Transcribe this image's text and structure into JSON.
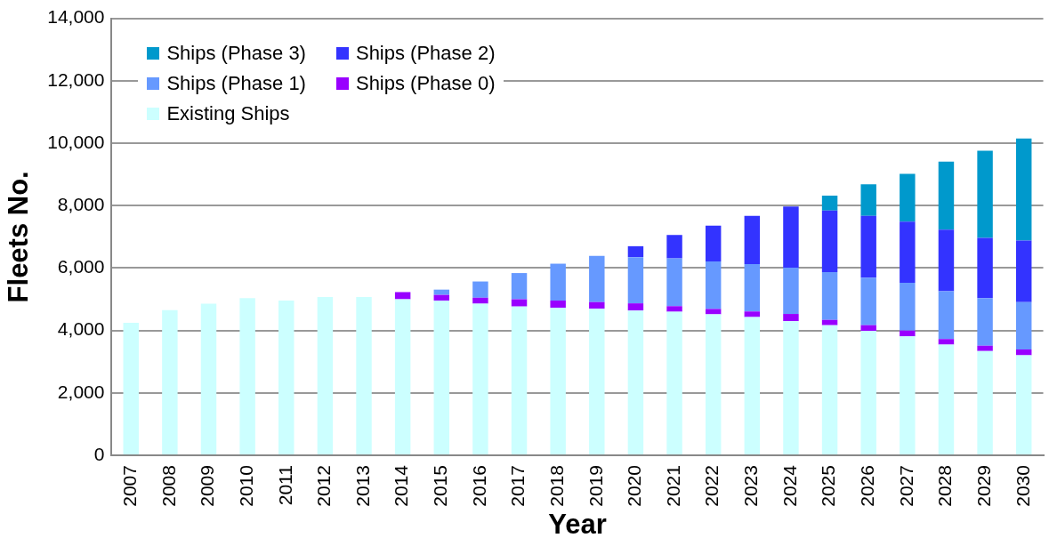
{
  "chart_data": {
    "type": "bar",
    "stacked": true,
    "xlabel": "Year",
    "ylabel": "Fleets No.",
    "categories": [
      "2007",
      "2008",
      "2009",
      "2010",
      "2011",
      "2012",
      "2013",
      "2014",
      "2015",
      "2016",
      "2017",
      "2018",
      "2019",
      "2020",
      "2021",
      "2022",
      "2023",
      "2024",
      "2025",
      "2026",
      "2027",
      "2028",
      "2029",
      "2030"
    ],
    "series": [
      {
        "name": "Existing Ships",
        "color": "#ccffff",
        "values": [
          4250,
          4650,
          4860,
          5040,
          4960,
          5070,
          5070,
          5000,
          4960,
          4860,
          4770,
          4730,
          4700,
          4640,
          4600,
          4520,
          4430,
          4300,
          4170,
          3990,
          3810,
          3550,
          3340,
          3210
        ]
      },
      {
        "name": "Ships (Phase 0)",
        "color": "#9900ff",
        "values": [
          null,
          null,
          null,
          null,
          null,
          null,
          null,
          230,
          180,
          190,
          230,
          230,
          210,
          230,
          180,
          170,
          180,
          230,
          170,
          180,
          190,
          180,
          170,
          180
        ]
      },
      {
        "name": "Ships (Phase 1)",
        "color": "#6699ff",
        "values": [
          null,
          null,
          null,
          null,
          null,
          null,
          null,
          null,
          170,
          520,
          840,
          1180,
          1480,
          1480,
          1530,
          1520,
          1520,
          1480,
          1530,
          1520,
          1530,
          1530,
          1530,
          1520
        ]
      },
      {
        "name": "Ships (Phase 2)",
        "color": "#3333ff",
        "values": [
          null,
          null,
          null,
          null,
          null,
          null,
          null,
          null,
          null,
          null,
          null,
          null,
          null,
          350,
          750,
          1150,
          1540,
          1960,
          1970,
          1980,
          1960,
          1970,
          1930,
          1970
        ]
      },
      {
        "name": "Ships (Phase 3)",
        "color": "#0099cc",
        "values": [
          null,
          null,
          null,
          null,
          null,
          null,
          null,
          null,
          null,
          null,
          null,
          null,
          null,
          null,
          null,
          null,
          null,
          null,
          480,
          1010,
          1530,
          2180,
          2790,
          3270
        ]
      }
    ],
    "ylim": [
      0,
      14000
    ],
    "yticks": [
      {
        "value": 0,
        "label": "0"
      },
      {
        "value": 2000,
        "label": "2,000"
      },
      {
        "value": 4000,
        "label": "4,000"
      },
      {
        "value": 6000,
        "label": "6,000"
      },
      {
        "value": 8000,
        "label": "8,000"
      },
      {
        "value": 10000,
        "label": "10,000"
      },
      {
        "value": 12000,
        "label": "12,000"
      },
      {
        "value": 14000,
        "label": "14,000"
      }
    ],
    "grid": "y",
    "legend": "top left"
  }
}
